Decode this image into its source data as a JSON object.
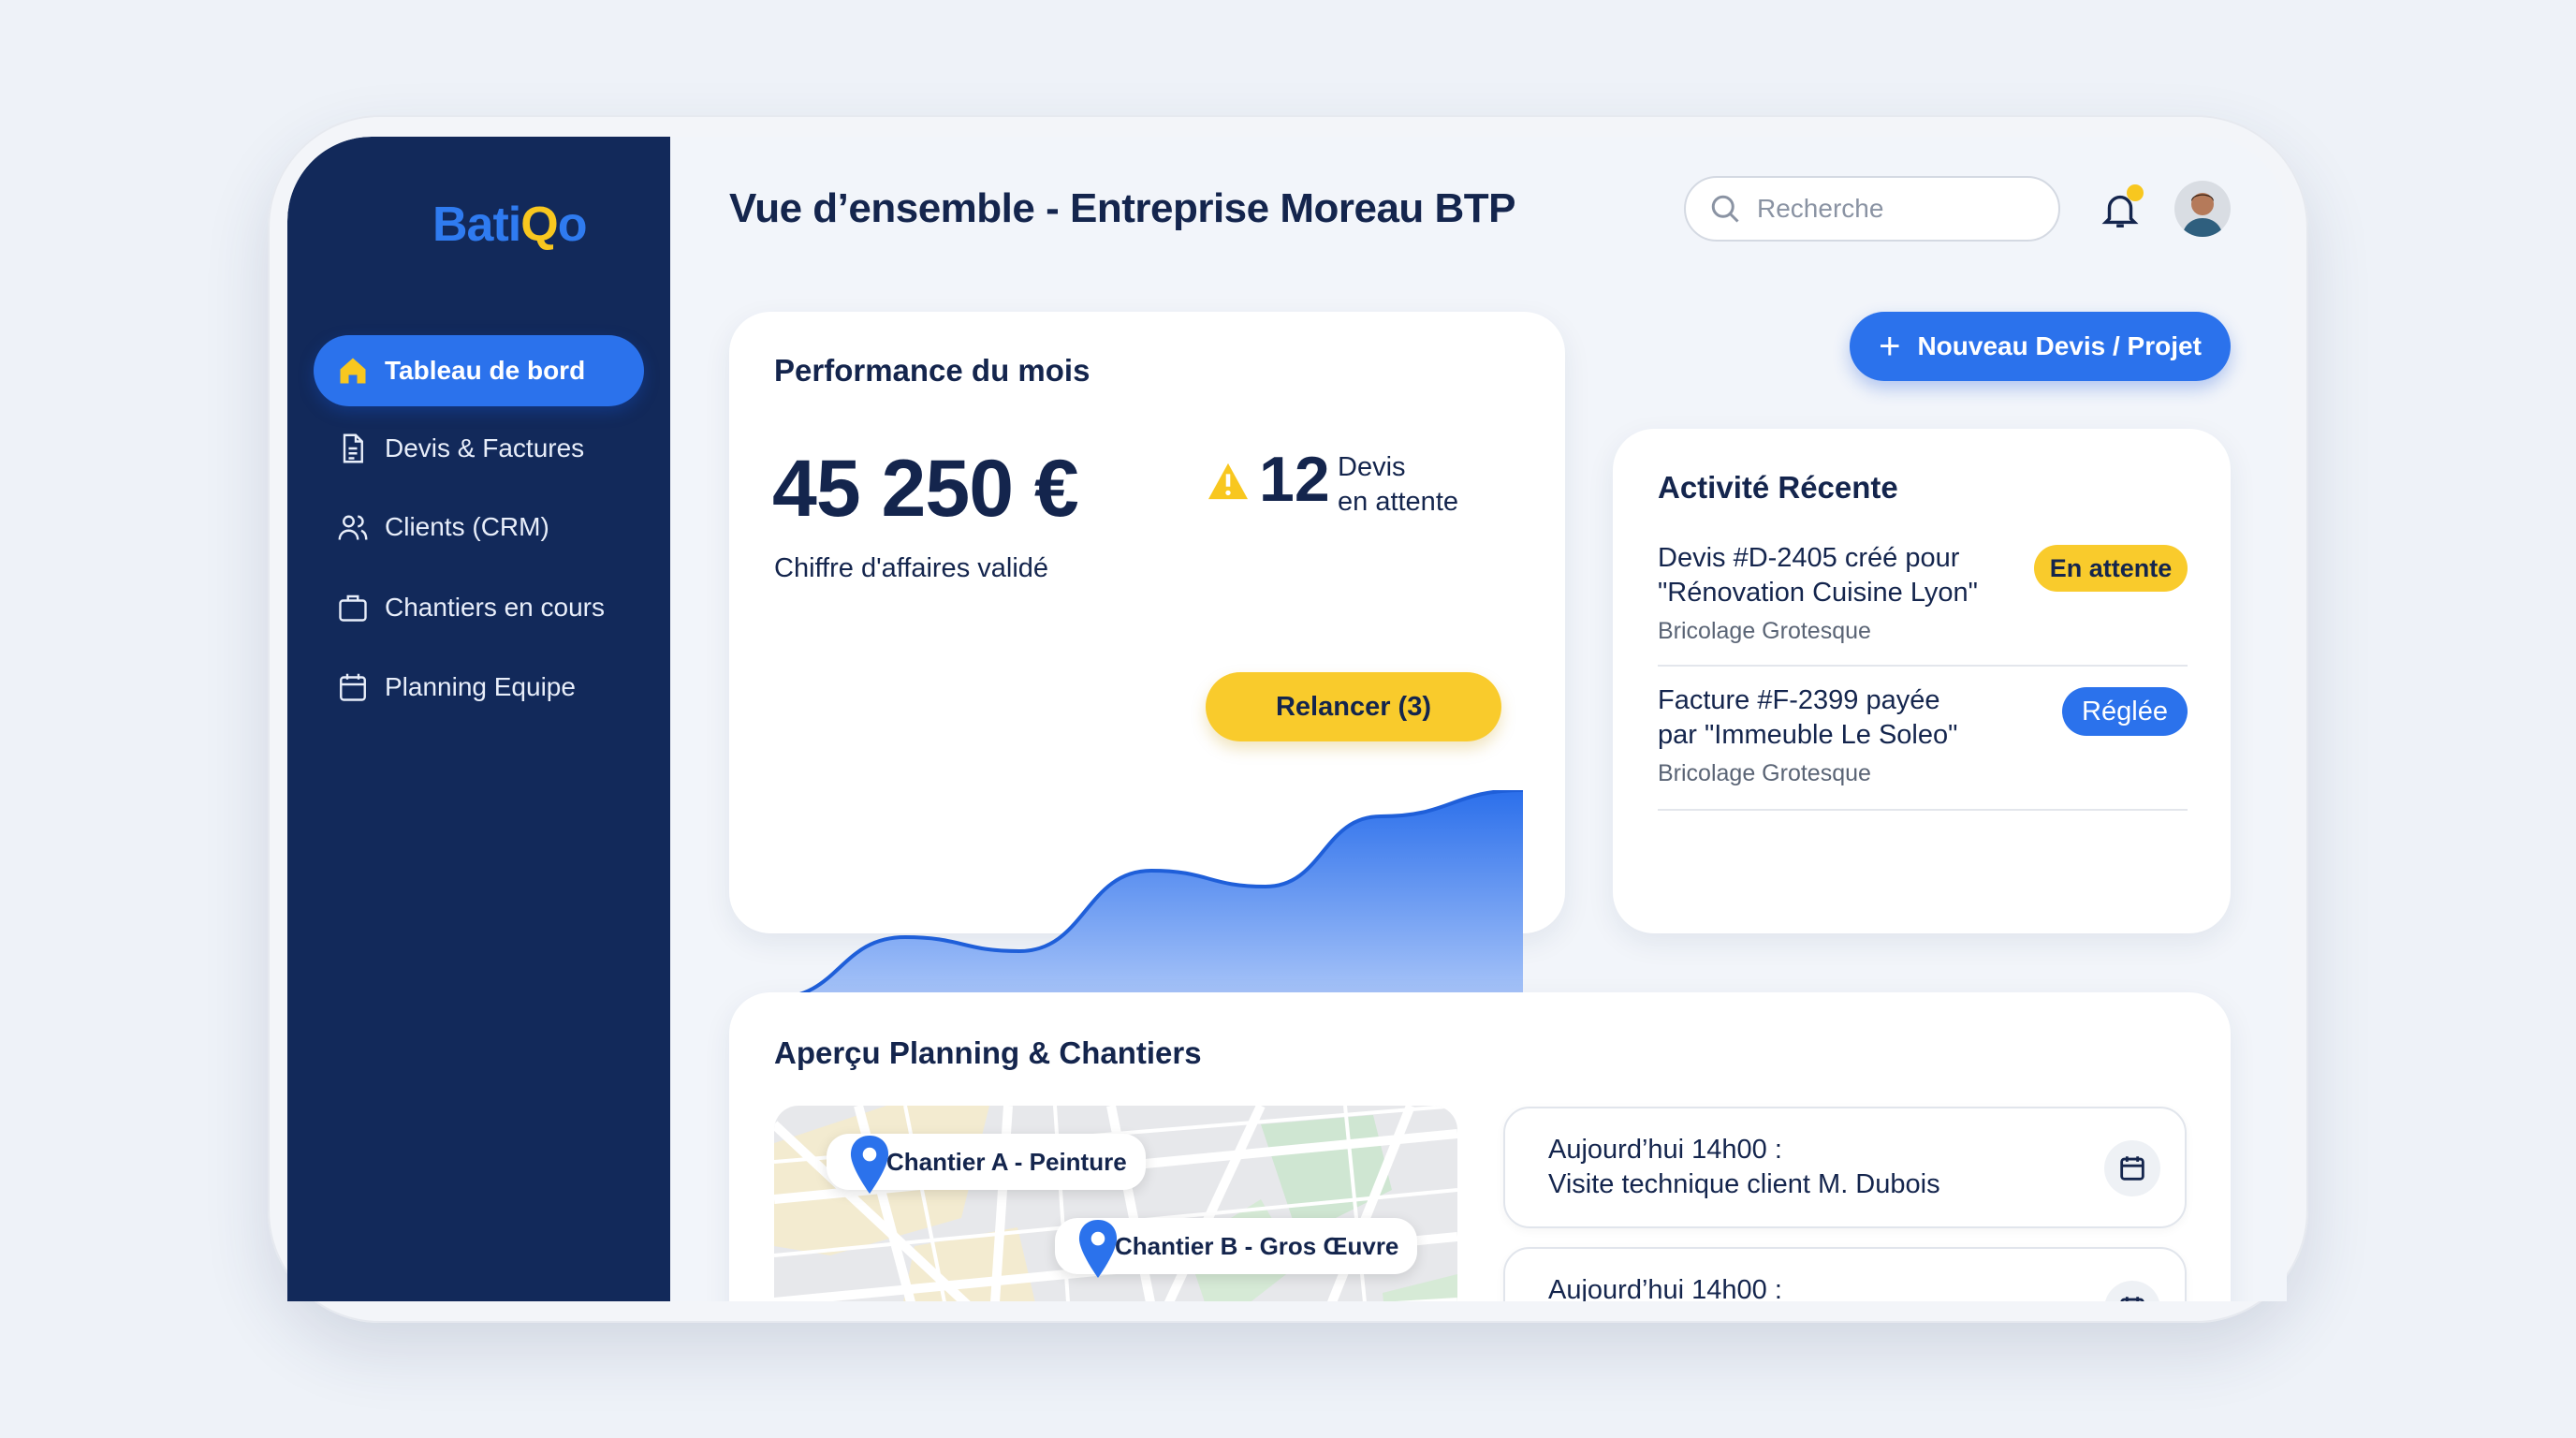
{
  "brand": {
    "name_part1": "Bati",
    "name_part2": "Q",
    "name_part3": "o"
  },
  "sidebar": {
    "items": [
      {
        "label": "Tableau de bord",
        "icon": "home-icon",
        "active": true
      },
      {
        "label": "Devis & Factures",
        "icon": "document-icon"
      },
      {
        "label": "Clients (CRM)",
        "icon": "users-icon"
      },
      {
        "label": "Chantiers en cours",
        "icon": "briefcase-icon"
      },
      {
        "label": "Planning Equipe",
        "icon": "calendar-icon"
      }
    ]
  },
  "header": {
    "title": "Vue d’ensemble - Entreprise Moreau BTP",
    "search_placeholder": "Recherche",
    "notification_dot": true
  },
  "actions": {
    "new_label": "Nouveau Devis / Projet"
  },
  "performance": {
    "title": "Performance du mois",
    "revenue": "45 250 €",
    "revenue_label": "Chiffre d'affaires validé",
    "pending_count": "12",
    "pending_label_1": "Devis",
    "pending_label_2": "en attente",
    "remind_label": "Relancer (3)"
  },
  "activity": {
    "title": "Activité Récente",
    "items": [
      {
        "line1": "Devis #D-2405 créé pour",
        "line2": "\"Rénovation Cuisine Lyon\"",
        "sub": "Bricolage Grotesque",
        "badge": "En attente",
        "badge_color": "#F9CB2C"
      },
      {
        "line1": "Facture #F-2399 payée",
        "line2": "par \"Immeuble Le Soleo\"",
        "sub": "Bricolage Grotesque",
        "badge": "Réglée",
        "badge_color": "#2B72EC"
      }
    ]
  },
  "planning": {
    "title": "Aperçu Planning & Chantiers",
    "sites": [
      "Chantier A - Peinture",
      "Chantier B - Gros Œuvre"
    ],
    "events": [
      {
        "time": "Aujourd’hui 14h00 :",
        "desc": "Visite technique client M. Dubois"
      },
      {
        "time": "Aujourd’hui 14h00 :",
        "desc": ""
      }
    ]
  },
  "colors": {
    "sidebar": "#12295A",
    "accent": "#2B72EC",
    "warning": "#F9CB2C"
  }
}
